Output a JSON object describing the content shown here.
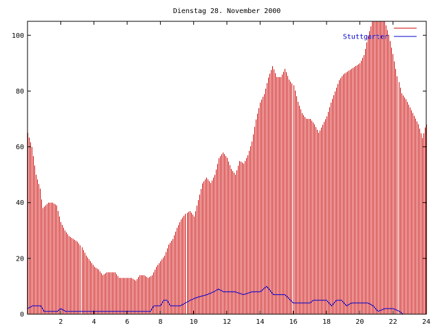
{
  "chart_data": {
    "type": "bar",
    "title": "Dienstag 28. November 2000",
    "xlabel": "",
    "ylabel": "",
    "xlim": [
      0,
      24
    ],
    "ylim": [
      0,
      105
    ],
    "x_ticks": [
      "2",
      "4",
      "6",
      "8",
      "10",
      "12",
      "14",
      "16",
      "18",
      "20",
      "22",
      "24"
    ],
    "y_ticks": [
      "0",
      "20",
      "40",
      "60",
      "80",
      "100"
    ],
    "grid": false,
    "legend_position": "top-right",
    "bar_interval_hours": 0.0833,
    "series": [
      {
        "name": "",
        "color": "#cc0000",
        "style": "impulses",
        "points": [
          [
            0,
            65
          ],
          [
            0.25,
            60
          ],
          [
            0.5,
            50
          ],
          [
            0.75,
            45
          ],
          [
            0.9,
            38
          ],
          [
            1.25,
            40
          ],
          [
            1.5,
            40
          ],
          [
            1.75,
            39
          ],
          [
            2,
            33
          ],
          [
            2.25,
            30
          ],
          [
            2.5,
            28
          ],
          [
            2.75,
            27
          ],
          [
            3,
            26
          ],
          [
            3.25,
            24
          ],
          [
            3.5,
            21
          ],
          [
            3.75,
            19
          ],
          [
            4,
            17
          ],
          [
            4.25,
            16
          ],
          [
            4.5,
            14
          ],
          [
            4.75,
            15
          ],
          [
            5,
            15
          ],
          [
            5.25,
            15
          ],
          [
            5.5,
            13
          ],
          [
            5.75,
            13
          ],
          [
            6,
            13
          ],
          [
            6.25,
            13
          ],
          [
            6.5,
            12
          ],
          [
            6.75,
            14
          ],
          [
            7,
            14
          ],
          [
            7.25,
            13
          ],
          [
            7.5,
            14
          ],
          [
            7.75,
            17
          ],
          [
            8,
            19
          ],
          [
            8.25,
            21
          ],
          [
            8.5,
            25
          ],
          [
            8.75,
            27
          ],
          [
            9,
            31
          ],
          [
            9.25,
            34
          ],
          [
            9.5,
            36
          ],
          [
            9.75,
            37
          ],
          [
            10,
            35
          ],
          [
            10.25,
            41
          ],
          [
            10.5,
            47
          ],
          [
            10.75,
            49
          ],
          [
            11,
            47
          ],
          [
            11.25,
            50
          ],
          [
            11.5,
            56
          ],
          [
            11.75,
            58
          ],
          [
            12,
            56
          ],
          [
            12.25,
            52
          ],
          [
            12.5,
            50
          ],
          [
            12.75,
            55
          ],
          [
            13,
            54
          ],
          [
            13.25,
            57
          ],
          [
            13.5,
            62
          ],
          [
            13.75,
            70
          ],
          [
            14,
            76
          ],
          [
            14.25,
            79
          ],
          [
            14.5,
            85
          ],
          [
            14.75,
            89
          ],
          [
            15,
            85
          ],
          [
            15.25,
            85
          ],
          [
            15.5,
            88
          ],
          [
            15.75,
            84
          ],
          [
            16,
            82
          ],
          [
            16.25,
            76
          ],
          [
            16.5,
            72
          ],
          [
            16.75,
            70
          ],
          [
            17,
            70
          ],
          [
            17.25,
            68
          ],
          [
            17.5,
            65
          ],
          [
            17.75,
            68
          ],
          [
            18,
            71
          ],
          [
            18.25,
            76
          ],
          [
            18.5,
            80
          ],
          [
            18.75,
            84
          ],
          [
            19,
            86
          ],
          [
            19.25,
            87
          ],
          [
            19.5,
            88
          ],
          [
            19.75,
            89
          ],
          [
            20,
            90
          ],
          [
            20.25,
            93
          ],
          [
            20.5,
            100
          ],
          [
            20.75,
            105
          ],
          [
            21,
            105
          ],
          [
            21.25,
            105
          ],
          [
            21.5,
            105
          ],
          [
            21.75,
            100
          ],
          [
            22,
            93
          ],
          [
            22.25,
            85
          ],
          [
            22.5,
            79
          ],
          [
            22.75,
            77
          ],
          [
            23,
            74
          ],
          [
            23.25,
            71
          ],
          [
            23.5,
            68
          ],
          [
            23.75,
            63
          ],
          [
            23.95,
            68
          ]
        ]
      },
      {
        "name": "Stuttgarter",
        "color": "#0000cc",
        "style": "line",
        "points": [
          [
            0,
            2
          ],
          [
            0.3,
            3
          ],
          [
            0.8,
            3
          ],
          [
            1,
            1
          ],
          [
            1.8,
            1
          ],
          [
            2,
            2
          ],
          [
            2.3,
            1
          ],
          [
            3,
            1
          ],
          [
            5,
            1
          ],
          [
            7,
            1
          ],
          [
            7.4,
            1
          ],
          [
            7.6,
            3
          ],
          [
            8,
            3
          ],
          [
            8.2,
            5
          ],
          [
            8.4,
            5
          ],
          [
            8.6,
            3
          ],
          [
            9.2,
            3
          ],
          [
            9.5,
            4
          ],
          [
            9.8,
            5
          ],
          [
            10.2,
            6
          ],
          [
            10.8,
            7
          ],
          [
            11.2,
            8
          ],
          [
            11.5,
            9
          ],
          [
            11.8,
            8
          ],
          [
            12.5,
            8
          ],
          [
            13,
            7
          ],
          [
            13.5,
            8
          ],
          [
            14,
            8
          ],
          [
            14.4,
            10
          ],
          [
            14.8,
            7
          ],
          [
            15.5,
            7
          ],
          [
            16,
            4
          ],
          [
            17,
            4
          ],
          [
            17.2,
            5
          ],
          [
            17.6,
            5
          ],
          [
            18,
            5
          ],
          [
            18.3,
            3
          ],
          [
            18.6,
            5
          ],
          [
            18.9,
            5
          ],
          [
            19.2,
            3
          ],
          [
            19.5,
            4
          ],
          [
            20,
            4
          ],
          [
            20.5,
            4
          ],
          [
            20.8,
            3
          ],
          [
            21.1,
            1
          ],
          [
            21.5,
            2
          ],
          [
            22,
            2
          ],
          [
            22.4,
            1
          ],
          [
            22.6,
            0
          ],
          [
            24,
            0
          ]
        ]
      }
    ]
  }
}
